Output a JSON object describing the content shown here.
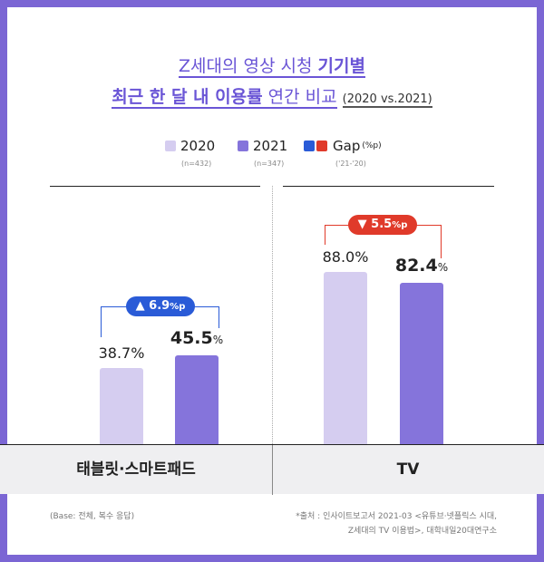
{
  "title": {
    "line1": "Z세대의 영상 시청 ",
    "line1_bold": "기기별",
    "line2_bold": "최근 한 달 내 이용률",
    "line2": " 연간 비교",
    "line2_years": "(2020 vs.2021)"
  },
  "legend": [
    {
      "label": "2020",
      "sub": "(n=432)",
      "color": "#d5cdf0"
    },
    {
      "label": "2021",
      "sub": "(n=347)",
      "color": "#8574db"
    },
    {
      "label": "Gap",
      "unit": "(%p)",
      "sub": "('21-'20)",
      "colors": [
        "#2a5bd7",
        "#e03a2a"
      ]
    }
  ],
  "chart_data": {
    "type": "bar",
    "categories": [
      "태블릿·스마트패드",
      "TV"
    ],
    "series": [
      {
        "name": "2020",
        "values": [
          38.7,
          88.0
        ]
      },
      {
        "name": "2021",
        "values": [
          45.5,
          82.4
        ]
      }
    ],
    "gaps": [
      {
        "arrow": "▲",
        "value": "6.9",
        "unit": "%p",
        "color": "#2a5bd7"
      },
      {
        "arrow": "▼",
        "value": "5.5",
        "unit": "%p",
        "color": "#e03a2a"
      }
    ],
    "labels2020": [
      "38.7%",
      "88.0%"
    ],
    "labels2021": [
      "45.5",
      "82.4"
    ],
    "pct": "%",
    "ylim": [
      0,
      100
    ]
  },
  "footer": {
    "base": "(Base: 전체, 복수 응답)",
    "source1": "*출처 : 인사이트보고서 2021-03 <유튜브·넷플릭스 시대,",
    "source2": "Z세대의 TV 이용법>, 대학내일20대연구소"
  }
}
